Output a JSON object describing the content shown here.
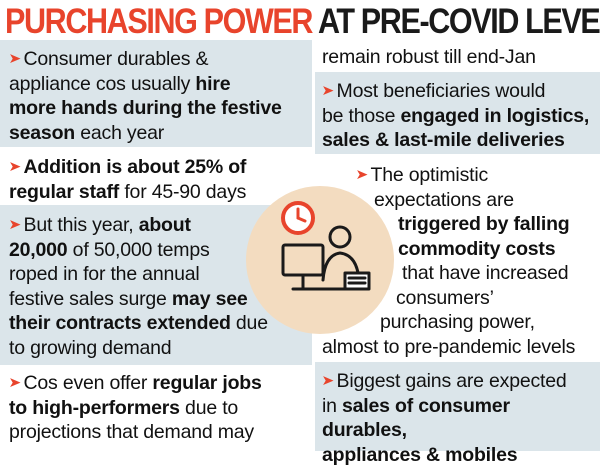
{
  "title": {
    "part1": "PURCHASING POWER",
    "part2": "AT PRE-COVID LEVEL"
  },
  "colors": {
    "accent": "#e8442c",
    "panel": "#dbe5ea",
    "text": "#111111",
    "illustration": "#f3dcc0"
  },
  "left": {
    "p1": {
      "a": "Consumer durables &",
      "b": "appliance cos usually ",
      "c": "hire",
      "d": "more hands during the festive",
      "e": "season",
      "f": " each year"
    },
    "p2": {
      "a": "Addition is about 25% of",
      "b": "regular staff",
      "c": " for 45-90 days"
    },
    "p3": {
      "a": "But this year, ",
      "b": "about",
      "c": "20,000",
      "d": " of 50,000 temps",
      "e": "roped in for the annual",
      "f": "festive sales surge ",
      "g": "may see",
      "h": "their contracts extended",
      "i": " due",
      "j": "to growing demand"
    },
    "p4": {
      "a": "Cos even offer ",
      "b": "regular jobs",
      "c": "to high-performers",
      "d": " due to",
      "e": "projections that demand may"
    }
  },
  "right": {
    "p1": {
      "a": "remain robust till end-Jan"
    },
    "p2": {
      "a": "Most beneficiaries would",
      "b": "be those ",
      "c": "engaged in logistics,",
      "d": "sales & last-mile deliveries"
    },
    "p3": {
      "a": "The optimistic",
      "b": "expectations are",
      "c": "triggered by falling",
      "d": "commodity costs",
      "e": "that have increased",
      "f": "consumers’",
      "g": "purchasing power,",
      "h": "almost to pre-pandemic levels"
    },
    "p4": {
      "a": "Biggest gains are expected",
      "b": "in ",
      "c": "sales of consumer durables,",
      "d": "appliances & mobiles"
    }
  },
  "illustration": {
    "icons": [
      "clock-icon",
      "worker-at-computer-icon"
    ]
  }
}
